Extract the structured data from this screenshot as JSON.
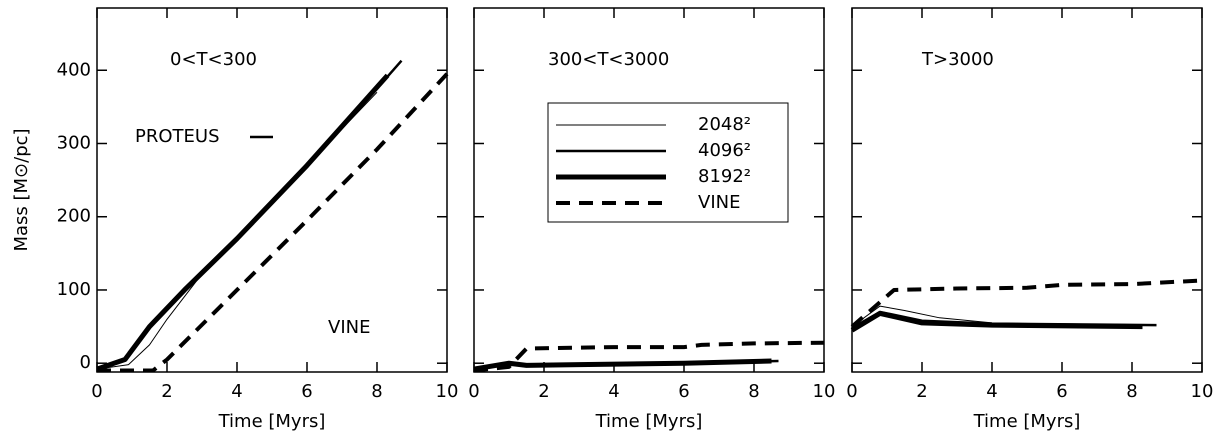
{
  "chart_data": [
    {
      "type": "line",
      "ylabel": "Mass [M⊙/pc]",
      "xlabel": "Time [Myrs]",
      "annotations": [
        "0<T<300",
        "PROTEUS",
        "VINE"
      ],
      "xlim": [
        0,
        10
      ],
      "xticks": [
        0,
        2,
        4,
        6,
        8,
        10
      ],
      "ylim": [
        -12,
        485
      ],
      "yticks": [
        0,
        100,
        200,
        300,
        400
      ],
      "show_ytick_labels": true,
      "series": [
        {
          "color": "#000000",
          "line_width": 1,
          "dash": false,
          "x": [
            0,
            0.9,
            1.5,
            2,
            3,
            4,
            6,
            8
          ],
          "values": [
            -8,
            -2,
            25,
            60,
            122,
            170,
            270,
            370
          ]
        },
        {
          "color": "#000000",
          "line_width": 2.5,
          "dash": false,
          "x": [
            0,
            0.8,
            1.5,
            2.5,
            4,
            6,
            8,
            8.7
          ],
          "values": [
            -8,
            5,
            52,
            102,
            172,
            272,
            375,
            413
          ]
        },
        {
          "color": "#000000",
          "line_width": 5,
          "dash": false,
          "x": [
            0,
            0.8,
            1.5,
            2.5,
            4,
            6,
            8.3
          ],
          "values": [
            -8,
            5,
            50,
            100,
            170,
            270,
            393
          ]
        },
        {
          "color": "#000000",
          "line_width": 4,
          "dash": true,
          "x": [
            0,
            1.6,
            2,
            4,
            6,
            8,
            10
          ],
          "values": [
            -10,
            -10,
            5,
            100,
            195,
            292,
            395
          ]
        }
      ]
    },
    {
      "type": "line",
      "xlabel": "Time [Myrs]",
      "annotations": [
        "300<T<3000"
      ],
      "xlim": [
        0,
        10
      ],
      "xticks": [
        0,
        2,
        4,
        6,
        8,
        10
      ],
      "ylim": [
        -12,
        485
      ],
      "yticks": [
        0,
        100,
        200,
        300,
        400
      ],
      "show_ytick_labels": false,
      "series": [
        {
          "name": "2048²",
          "color": "#000000",
          "line_width": 1,
          "dash": false,
          "x": [
            0,
            1,
            1.5,
            3,
            6,
            8.7
          ],
          "values": [
            -8,
            -1,
            -3,
            -2,
            0,
            3
          ]
        },
        {
          "name": "4096²",
          "color": "#000000",
          "line_width": 2.5,
          "dash": false,
          "x": [
            0,
            1,
            1.5,
            3,
            6,
            8.7
          ],
          "values": [
            -8,
            0,
            -3,
            -2,
            0,
            3
          ]
        },
        {
          "name": "8192²",
          "color": "#000000",
          "line_width": 5,
          "dash": false,
          "x": [
            0,
            1,
            1.5,
            3,
            6,
            8.5
          ],
          "values": [
            -8,
            0,
            -3,
            -2,
            0,
            3
          ]
        },
        {
          "name": "VINE",
          "color": "#000000",
          "line_width": 4,
          "dash": true,
          "x": [
            0,
            1,
            1.5,
            4,
            6,
            6.5,
            8,
            10
          ],
          "values": [
            -10,
            -5,
            20,
            22,
            22,
            25,
            27,
            28
          ]
        }
      ]
    },
    {
      "type": "line",
      "xlabel": "Time [Myrs]",
      "annotations": [
        "T>3000"
      ],
      "xlim": [
        0,
        10
      ],
      "xticks": [
        0,
        2,
        4,
        6,
        8,
        10
      ],
      "ylim": [
        -12,
        485
      ],
      "yticks": [
        0,
        100,
        200,
        300,
        400
      ],
      "show_ytick_labels": false,
      "series": [
        {
          "color": "#000000",
          "line_width": 1,
          "dash": false,
          "x": [
            0,
            0.8,
            1.5,
            2.5,
            4,
            6,
            8.7
          ],
          "values": [
            50,
            78,
            72,
            62,
            55,
            53,
            52
          ]
        },
        {
          "color": "#000000",
          "line_width": 2.5,
          "dash": false,
          "x": [
            0,
            0.8,
            2,
            4,
            8.7
          ],
          "values": [
            48,
            70,
            58,
            54,
            52
          ]
        },
        {
          "color": "#000000",
          "line_width": 5,
          "dash": false,
          "x": [
            0,
            0.8,
            2,
            4,
            8.3
          ],
          "values": [
            45,
            68,
            55,
            52,
            50
          ]
        },
        {
          "color": "#000000",
          "line_width": 4,
          "dash": true,
          "x": [
            0,
            1.2,
            3,
            5,
            6,
            8,
            10
          ],
          "values": [
            50,
            100,
            102,
            103,
            107,
            108,
            113
          ]
        }
      ]
    }
  ]
}
